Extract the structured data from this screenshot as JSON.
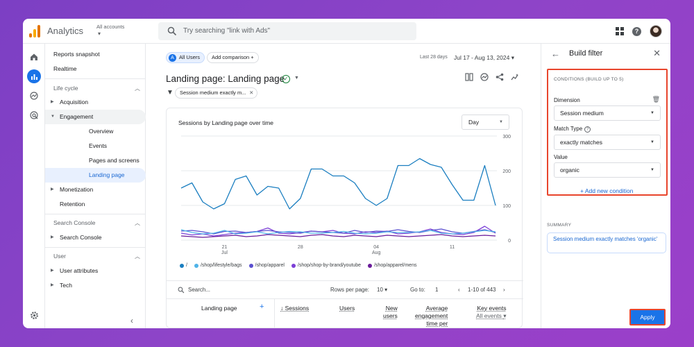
{
  "header": {
    "app_name": "Analytics",
    "account_label": "All accounts",
    "search_placeholder": "Try searching \"link with Ads\""
  },
  "sidebar": {
    "reports_snapshot": "Reports snapshot",
    "realtime": "Realtime",
    "lifecycle_section": "Life cycle",
    "acquisition": "Acquisition",
    "engagement": "Engagement",
    "overview": "Overview",
    "events": "Events",
    "pages_screens": "Pages and screens",
    "landing_page": "Landing page",
    "monetization": "Monetization",
    "retention": "Retention",
    "search_console_section": "Search Console",
    "search_console": "Search Console",
    "user_section": "User",
    "user_attributes": "User attributes",
    "tech": "Tech"
  },
  "toolbar": {
    "segment_badge": "A",
    "segment_label": "All Users",
    "add_comparison": "Add comparison",
    "date_label": "Last 28 days",
    "date_range": "Jul 17 - Aug 13, 2024",
    "page_title": "Landing page: Landing page",
    "filter_chip": "Session medium exactly m..."
  },
  "card": {
    "title": "Sessions by Landing page over time",
    "granularity": "Day",
    "search_placeholder": "Search...",
    "rows_per_page_label": "Rows per page:",
    "rows_per_page": "10",
    "goto_label": "Go to:",
    "goto_value": "1",
    "pagination": "1-10 of 443",
    "columns": {
      "landing_page": "Landing page",
      "sessions": "Sessions",
      "users": "Users",
      "new_users_1": "New",
      "new_users_2": "users",
      "avg_eng_1": "Average",
      "avg_eng_2": "engagement",
      "avg_eng_3": "time per",
      "key_events": "Key events",
      "key_events_sub": "All events"
    }
  },
  "chart_data": {
    "type": "line",
    "x_tick_labels": [
      {
        "label": "21",
        "sub": "Jul",
        "index": 4
      },
      {
        "label": "28",
        "sub": "",
        "index": 11
      },
      {
        "label": "04",
        "sub": "Aug",
        "index": 18
      },
      {
        "label": "11",
        "sub": "",
        "index": 25
      }
    ],
    "ylim": [
      0,
      300
    ],
    "y_ticks": [
      0,
      100,
      200,
      300
    ],
    "series": [
      {
        "name": "/",
        "color": "#1a7ec0",
        "values": [
          150,
          165,
          110,
          90,
          105,
          175,
          185,
          130,
          155,
          150,
          90,
          120,
          205,
          205,
          185,
          185,
          165,
          120,
          100,
          120,
          215,
          215,
          235,
          218,
          210,
          160,
          115,
          115,
          215,
          100
        ]
      },
      {
        "name": "/shop/lifestyle/bags",
        "color": "#4fb3e8",
        "values": [
          30,
          22,
          18,
          20,
          28,
          18,
          20,
          24,
          18,
          22,
          25,
          24,
          20,
          20,
          22,
          25,
          20,
          18,
          20,
          24,
          22,
          22,
          24,
          28,
          20,
          18,
          20,
          24,
          28,
          24
        ]
      },
      {
        "name": "/shop/apparel",
        "color": "#5a4fcf",
        "values": [
          26,
          28,
          24,
          18,
          25,
          26,
          22,
          25,
          28,
          24,
          22,
          20,
          26,
          24,
          22,
          20,
          28,
          22,
          26,
          25,
          30,
          25,
          22,
          28,
          32,
          24,
          20,
          25,
          30,
          22
        ]
      },
      {
        "name": "/shop/shop-by-brand/youtube",
        "color": "#7c3fd6",
        "values": [
          20,
          15,
          18,
          12,
          16,
          20,
          22,
          25,
          35,
          20,
          18,
          22,
          26,
          24,
          28,
          20,
          18,
          24,
          22,
          26,
          18,
          20,
          24,
          32,
          22,
          18,
          16,
          22,
          40,
          20
        ]
      },
      {
        "name": "/shop/apparel/mens",
        "color": "#6a1b9a",
        "values": [
          12,
          10,
          8,
          10,
          12,
          14,
          10,
          12,
          16,
          14,
          12,
          10,
          14,
          16,
          12,
          10,
          14,
          12,
          10,
          14,
          12,
          10,
          12,
          14,
          16,
          12,
          10,
          12,
          14,
          12
        ]
      }
    ]
  },
  "panel": {
    "title": "Build filter",
    "conditions_label": "CONDITIONS (BUILD UP TO 5)",
    "dimension_label": "Dimension",
    "dimension_value": "Session medium",
    "match_type_label": "Match Type",
    "match_type_value": "exactly matches",
    "value_label": "Value",
    "value_value": "organic",
    "add_condition": "Add new condition",
    "summary_label": "SUMMARY",
    "summary_text": "Session medium exactly matches 'organic'",
    "apply": "Apply"
  }
}
